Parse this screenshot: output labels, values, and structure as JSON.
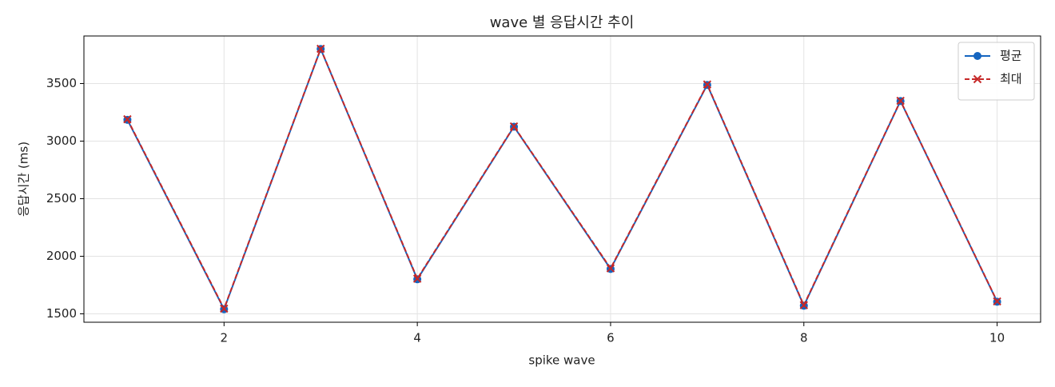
{
  "chart_data": {
    "type": "line",
    "title": "wave 별 응답시간 추이",
    "x_label": "spike wave",
    "y_label": "응답시간 (ms)",
    "x": [
      1,
      2,
      3,
      4,
      5,
      6,
      7,
      8,
      9,
      10
    ],
    "series": [
      {
        "name": "평균",
        "color": "#1565c0",
        "marker": "circle",
        "dashed": false,
        "values": [
          3185,
          1540,
          3800,
          1800,
          3125,
          1890,
          3488,
          1570,
          3348,
          1605
        ]
      },
      {
        "name": "최대",
        "color": "#c62828",
        "marker": "x",
        "dashed": true,
        "values": [
          3190,
          1545,
          3802,
          1805,
          3128,
          1895,
          3492,
          1575,
          3350,
          1608
        ]
      }
    ],
    "xlim": [
      0.55,
      10.45
    ],
    "xticks": [
      2,
      4,
      6,
      8,
      10
    ],
    "ylim": [
      1427,
      3913
    ],
    "yticks": [
      1500,
      2000,
      2500,
      3000,
      3500
    ],
    "grid": true,
    "legend": "upper right"
  }
}
